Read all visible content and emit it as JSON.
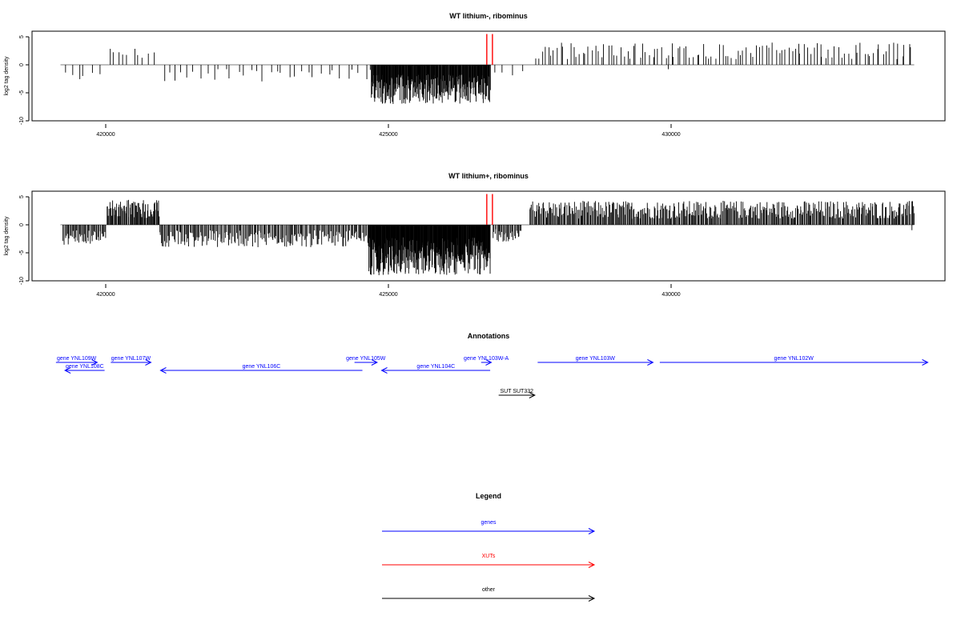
{
  "chart_data": [
    {
      "type": "bar",
      "title": "WT lithium-, ribominus",
      "ylabel": "log2 tag density",
      "xlim": [
        418500,
        434800
      ],
      "ylim": [
        -10,
        6
      ],
      "x_ticks": [
        420000,
        425000,
        430000
      ],
      "x_tick_labels": [
        "420000",
        "425000",
        "430000"
      ],
      "y_ticks": [
        -10,
        -5,
        0,
        5
      ],
      "y_tick_labels": [
        "-10",
        "-5",
        "0",
        "5"
      ],
      "baseline": {
        "from": 419200,
        "to": 434300,
        "y": 0
      },
      "markers": [
        {
          "x": 426740,
          "y": 5.5,
          "color": "#ff0000"
        },
        {
          "x": 426840,
          "y": 5.5,
          "color": "#ff0000"
        }
      ],
      "density": "sparse",
      "regions": [
        {
          "from": 419250,
          "to": 419900,
          "sign": -1,
          "amp": 3.2,
          "count": 6
        },
        {
          "from": 420080,
          "to": 420350,
          "sign": 1,
          "amp": 3.6,
          "count": 5
        },
        {
          "from": 420500,
          "to": 420850,
          "sign": 1,
          "amp": 3.1,
          "count": 5
        },
        {
          "from": 421000,
          "to": 424700,
          "sign": -1,
          "amp": 3.0,
          "count": 34
        },
        {
          "from": 424700,
          "to": 426800,
          "sign": -1,
          "amp": 7.0,
          "count": 260
        },
        {
          "from": 426850,
          "to": 427400,
          "sign": -1,
          "amp": 2.4,
          "count": 4
        },
        {
          "from": 427600,
          "to": 434250,
          "sign": 1,
          "amp": 4.0,
          "count": 120
        },
        {
          "from": 429950,
          "to": 429950,
          "sign": -1,
          "amp": 2.8,
          "count": 1
        }
      ]
    },
    {
      "type": "bar",
      "title": "WT lithium+, ribominus",
      "ylabel": "log2 tag density",
      "xlim": [
        418500,
        434800
      ],
      "ylim": [
        -10,
        6
      ],
      "x_ticks": [
        420000,
        425000,
        430000
      ],
      "x_tick_labels": [
        "420000",
        "425000",
        "430000"
      ],
      "y_ticks": [
        -10,
        -5,
        0,
        5
      ],
      "y_tick_labels": [
        "-10",
        "-5",
        "0",
        "5"
      ],
      "baseline": {
        "from": 419200,
        "to": 434300,
        "y": 0
      },
      "markers": [
        {
          "x": 426740,
          "y": 5.5,
          "color": "#ff0000"
        },
        {
          "x": 426840,
          "y": 5.5,
          "color": "#ff0000"
        }
      ],
      "density": "dense",
      "regions": [
        {
          "from": 419250,
          "to": 420000,
          "sign": -1,
          "amp": 3.6,
          "count": 45
        },
        {
          "from": 420020,
          "to": 420950,
          "sign": 1,
          "amp": 4.6,
          "count": 70
        },
        {
          "from": 420950,
          "to": 424650,
          "sign": -1,
          "amp": 4.0,
          "count": 200
        },
        {
          "from": 424650,
          "to": 426800,
          "sign": -1,
          "amp": 9.0,
          "count": 330
        },
        {
          "from": 426850,
          "to": 427350,
          "sign": -1,
          "amp": 3.0,
          "count": 30
        },
        {
          "from": 427500,
          "to": 434300,
          "sign": 1,
          "amp": 4.3,
          "count": 420
        },
        {
          "from": 434260,
          "to": 434260,
          "sign": -1,
          "amp": 1.0,
          "count": 1
        }
      ]
    }
  ],
  "annotations": {
    "title": "Annotations",
    "genes": [
      {
        "label": "gene YNL109W",
        "from": 419120,
        "to": 419850,
        "strand": "+",
        "row": 1,
        "color": "#0000ff"
      },
      {
        "label": "gene YNL108C",
        "from": 419280,
        "to": 419980,
        "strand": "-",
        "row": 2,
        "color": "#0000ff"
      },
      {
        "label": "gene YNL107W",
        "from": 420090,
        "to": 420800,
        "strand": "+",
        "row": 1,
        "color": "#0000ff"
      },
      {
        "label": "gene YNL106C",
        "from": 420970,
        "to": 424540,
        "strand": "-",
        "row": 2,
        "color": "#0000ff"
      },
      {
        "label": "gene YNL105W",
        "from": 424400,
        "to": 424800,
        "strand": "+",
        "row": 1,
        "color": "#0000ff"
      },
      {
        "label": "gene YNL104C",
        "from": 424880,
        "to": 426800,
        "strand": "-",
        "row": 2,
        "color": "#0000ff"
      },
      {
        "label": "gene YNL103W-A",
        "from": 426640,
        "to": 426820,
        "strand": "+",
        "row": 1,
        "color": "#0000ff"
      },
      {
        "label": "gene YNL103W",
        "from": 427640,
        "to": 429680,
        "strand": "+",
        "row": 1,
        "color": "#0000ff"
      },
      {
        "label": "gene YNL102W",
        "from": 429800,
        "to": 434540,
        "strand": "+",
        "row": 1,
        "color": "#0000ff"
      },
      {
        "label": "SUT SUT332",
        "from": 426950,
        "to": 427590,
        "strand": "+",
        "row": 3,
        "color": "#000000"
      }
    ]
  },
  "legend": {
    "title": "Legend",
    "items": [
      {
        "label": "genes",
        "color": "#0000ff"
      },
      {
        "label": "XUTs",
        "color": "#ff0000"
      },
      {
        "label": "other",
        "color": "#000000"
      }
    ]
  }
}
